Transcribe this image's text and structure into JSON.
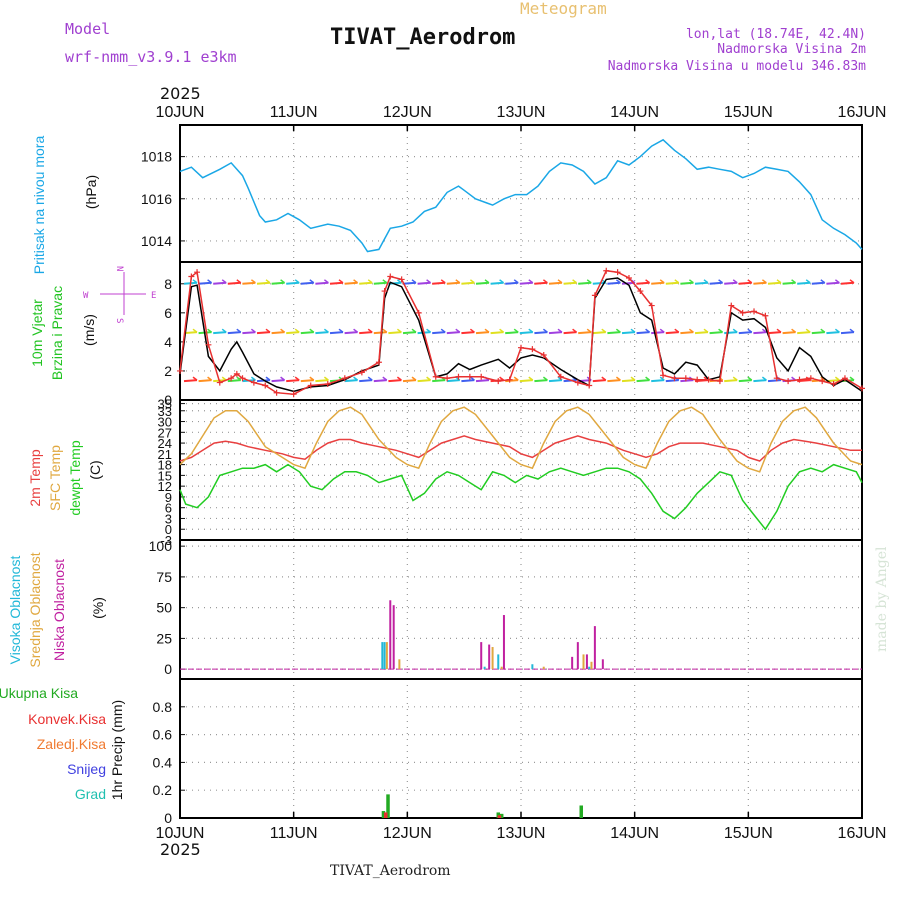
{
  "header": {
    "model_label": "Model",
    "model_name": "wrf-nmm_v3.9.1  e3km",
    "title": "TIVAT_Aerodrom",
    "meteogram_label": "Meteogram",
    "lonlat": "lon,lat (18.74E, 42.4N)",
    "elevation": "Nadmorska Visina 2m",
    "model_elevation": "Nadmorska Visina u modelu 346.83m",
    "year_top": "2025",
    "year_bottom": "2025",
    "footer_station": "TIVAT_Aerodrom",
    "watermark": "made by Angel"
  },
  "colors": {
    "pressure": "#1aa7e6",
    "wind_label": "#22c422",
    "wind_gust": "#e83030",
    "wind_speed": "#000000",
    "temp2m": "#e84040",
    "tempsfc": "#e0a840",
    "dewpt": "#22cc22",
    "cloud_high": "#22b8d8",
    "cloud_mid": "#e0a840",
    "cloud_low": "#c020a0",
    "precip_total": "#22aa22",
    "precip_conv": "#e83030",
    "precip_frz": "#f07a30",
    "precip_snow": "#4040e0",
    "precip_grad": "#20c0b0",
    "title_purple": "#a040d0"
  },
  "chart_data": {
    "type": "meteogram",
    "time_axis": {
      "ticks": [
        "10JUN",
        "11JUN",
        "12JUN",
        "13JUN",
        "14JUN",
        "15JUN",
        "16JUN"
      ],
      "range_days": [
        0,
        6
      ]
    },
    "panels": [
      {
        "id": "pressure",
        "type": "line",
        "ylabel_side": "Pritisak na nivou mora",
        "unit": "(hPa)",
        "ylim": [
          1013.0,
          1019.5
        ],
        "ticks": [
          1014,
          1016,
          1018
        ],
        "series": [
          {
            "name": "Pritisak na nivou mora",
            "color_key": "pressure",
            "x": [
              0,
              0.1,
              0.2,
              0.35,
              0.45,
              0.55,
              0.6,
              0.7,
              0.75,
              0.85,
              0.95,
              1.05,
              1.15,
              1.3,
              1.4,
              1.5,
              1.6,
              1.65,
              1.75,
              1.85,
              1.95,
              2.05,
              2.15,
              2.25,
              2.35,
              2.45,
              2.5,
              2.6,
              2.7,
              2.75,
              2.85,
              2.95,
              3.05,
              3.15,
              3.25,
              3.35,
              3.45,
              3.55,
              3.65,
              3.75,
              3.85,
              3.95,
              4.05,
              4.15,
              4.25,
              4.35,
              4.45,
              4.55,
              4.65,
              4.75,
              4.85,
              4.95,
              5.05,
              5.15,
              5.25,
              5.35,
              5.45,
              5.55,
              5.65,
              5.75,
              5.85,
              5.95,
              6.0
            ],
            "values": [
              1017.3,
              1017.5,
              1017.0,
              1017.4,
              1017.7,
              1017.1,
              1016.5,
              1015.2,
              1014.9,
              1015.0,
              1015.3,
              1015.0,
              1014.6,
              1014.8,
              1014.7,
              1014.5,
              1013.9,
              1013.5,
              1013.6,
              1014.6,
              1014.7,
              1014.9,
              1015.4,
              1015.6,
              1016.3,
              1016.6,
              1016.4,
              1016.0,
              1015.8,
              1015.7,
              1016.0,
              1016.2,
              1016.2,
              1016.6,
              1017.3,
              1017.7,
              1017.6,
              1017.3,
              1016.7,
              1017.0,
              1017.8,
              1017.6,
              1018.0,
              1018.5,
              1018.8,
              1018.3,
              1017.9,
              1017.4,
              1017.5,
              1017.4,
              1017.3,
              1017.0,
              1017.2,
              1017.5,
              1017.4,
              1017.3,
              1016.8,
              1016.2,
              1015.0,
              1014.6,
              1014.3,
              1013.9,
              1013.6
            ]
          }
        ]
      },
      {
        "id": "wind",
        "type": "line",
        "ylabel_side": [
          "10m Vjetar",
          "Brzina i Pravac"
        ],
        "unit": "(m/s)",
        "compass": {
          "n": "N",
          "w": "W",
          "e": "E",
          "s": "S"
        },
        "ylim": [
          0,
          9.5
        ],
        "ticks": [
          0,
          2,
          4,
          6,
          8
        ],
        "barb_rows": [
          1.3,
          4.6,
          8.0
        ],
        "series": [
          {
            "name": "Brzina",
            "color_key": "wind_speed",
            "x": [
              0,
              0.1,
              0.15,
              0.25,
              0.35,
              0.45,
              0.5,
              0.55,
              0.65,
              0.75,
              0.85,
              1.0,
              1.15,
              1.3,
              1.45,
              1.6,
              1.75,
              1.8,
              1.85,
              1.95,
              2.1,
              2.25,
              2.35,
              2.45,
              2.55,
              2.65,
              2.8,
              2.9,
              3.0,
              3.1,
              3.2,
              3.35,
              3.5,
              3.6,
              3.65,
              3.75,
              3.85,
              3.95,
              4.05,
              4.15,
              4.25,
              4.35,
              4.45,
              4.55,
              4.65,
              4.75,
              4.85,
              4.95,
              5.05,
              5.15,
              5.25,
              5.35,
              5.45,
              5.55,
              5.65,
              5.75,
              5.85,
              6.0
            ],
            "values": [
              1.8,
              7.8,
              7.9,
              3.0,
              2.0,
              3.5,
              4.0,
              3.3,
              1.8,
              1.3,
              0.9,
              0.6,
              0.9,
              1.0,
              1.4,
              2.0,
              2.4,
              7.0,
              8.1,
              7.8,
              5.5,
              1.6,
              1.8,
              2.5,
              2.1,
              2.4,
              2.8,
              2.2,
              2.9,
              3.1,
              2.9,
              2.1,
              1.4,
              1.0,
              7.0,
              8.3,
              8.4,
              7.9,
              6.0,
              5.5,
              2.2,
              1.8,
              2.6,
              2.4,
              1.4,
              1.6,
              6.0,
              5.5,
              5.6,
              5.0,
              2.9,
              2.0,
              3.6,
              3.0,
              1.6,
              1.0,
              1.4,
              0.6
            ]
          },
          {
            "name": "Udari",
            "color_key": "wind_gust",
            "x": [
              0,
              0.1,
              0.15,
              0.25,
              0.35,
              0.45,
              0.5,
              0.55,
              0.65,
              0.75,
              0.85,
              1.0,
              1.15,
              1.3,
              1.45,
              1.6,
              1.75,
              1.8,
              1.85,
              1.95,
              2.1,
              2.25,
              2.35,
              2.45,
              2.55,
              2.65,
              2.8,
              2.9,
              3.0,
              3.1,
              3.2,
              3.35,
              3.5,
              3.6,
              3.65,
              3.75,
              3.85,
              3.95,
              4.05,
              4.15,
              4.25,
              4.35,
              4.45,
              4.55,
              4.65,
              4.75,
              4.85,
              4.95,
              5.05,
              5.15,
              5.25,
              5.35,
              5.45,
              5.55,
              5.65,
              5.75,
              5.85,
              6.0
            ],
            "values": [
              2.0,
              8.5,
              8.8,
              3.8,
              1.2,
              1.5,
              1.8,
              1.5,
              1.2,
              1.0,
              0.5,
              0.4,
              1.0,
              1.1,
              1.5,
              1.9,
              2.6,
              7.5,
              8.5,
              8.3,
              6.0,
              1.6,
              1.5,
              1.6,
              1.6,
              1.6,
              1.3,
              1.4,
              3.6,
              3.5,
              3.1,
              1.6,
              1.2,
              1.0,
              7.2,
              8.9,
              8.8,
              8.4,
              7.5,
              6.5,
              1.7,
              1.5,
              1.5,
              1.4,
              1.4,
              1.3,
              6.5,
              6.0,
              6.1,
              5.8,
              1.5,
              1.3,
              1.4,
              1.5,
              1.3,
              1.1,
              1.5,
              0.8
            ]
          }
        ]
      },
      {
        "id": "temperature",
        "type": "line",
        "ylabel_side": [
          "2m Temp",
          "SFC Temp",
          "dewpt Temp"
        ],
        "unit": "(C)",
        "ylim": [
          -3,
          36
        ],
        "ticks": [
          -3,
          0,
          3,
          6,
          9,
          12,
          15,
          18,
          21,
          24,
          27,
          30,
          33,
          35
        ],
        "series": [
          {
            "name": "2m Temp",
            "color_key": "temp2m",
            "x": [
              0,
              0.1,
              0.2,
              0.3,
              0.4,
              0.5,
              0.6,
              0.75,
              0.9,
              1.0,
              1.1,
              1.2,
              1.3,
              1.4,
              1.5,
              1.6,
              1.75,
              1.9,
              2.0,
              2.1,
              2.2,
              2.3,
              2.4,
              2.5,
              2.6,
              2.75,
              2.9,
              3.0,
              3.1,
              3.2,
              3.3,
              3.4,
              3.5,
              3.6,
              3.75,
              3.9,
              4.0,
              4.1,
              4.2,
              4.3,
              4.4,
              4.5,
              4.6,
              4.75,
              4.9,
              5.0,
              5.1,
              5.2,
              5.3,
              5.4,
              5.5,
              5.6,
              5.75,
              5.9,
              6.0
            ],
            "values": [
              19,
              20,
              22,
              24,
              24.5,
              24,
              23,
              22,
              21,
              20,
              19.5,
              22,
              24,
              25,
              25,
              24,
              23,
              22,
              21,
              20,
              22,
              24,
              25,
              26,
              25,
              24,
              23,
              21,
              20,
              22,
              24,
              25,
              26,
              25,
              24,
              22,
              21,
              20,
              21,
              23,
              24,
              24,
              24,
              23,
              22,
              20,
              19,
              22,
              24,
              25,
              24.5,
              24,
              23,
              22,
              22
            ]
          },
          {
            "name": "SFC Temp",
            "color_key": "tempsfc",
            "x": [
              0,
              0.1,
              0.2,
              0.3,
              0.4,
              0.5,
              0.6,
              0.75,
              0.9,
              1.0,
              1.1,
              1.2,
              1.3,
              1.4,
              1.5,
              1.6,
              1.75,
              1.9,
              2.0,
              2.1,
              2.2,
              2.3,
              2.4,
              2.5,
              2.6,
              2.75,
              2.9,
              3.0,
              3.1,
              3.2,
              3.3,
              3.4,
              3.5,
              3.6,
              3.75,
              3.9,
              4.0,
              4.1,
              4.2,
              4.3,
              4.4,
              4.5,
              4.6,
              4.75,
              4.9,
              5.0,
              5.1,
              5.2,
              5.3,
              5.4,
              5.5,
              5.6,
              5.75,
              5.9,
              6.0
            ],
            "values": [
              18,
              21,
              26,
              31,
              33,
              33,
              30,
              23,
              20,
              18,
              17,
              24,
              30,
              33,
              34,
              32,
              25,
              20,
              18,
              17,
              24,
              30,
              33,
              34,
              32,
              26,
              20,
              18,
              17,
              24,
              30,
              33,
              34,
              32,
              26,
              20,
              18,
              17,
              24,
              30,
              33,
              34,
              32,
              25,
              19,
              17,
              16,
              24,
              30,
              33,
              34,
              31,
              24,
              19,
              18
            ]
          },
          {
            "name": "dewpt Temp",
            "color_key": "dewpt",
            "x": [
              0,
              0.05,
              0.15,
              0.25,
              0.35,
              0.45,
              0.55,
              0.65,
              0.75,
              0.85,
              0.95,
              1.05,
              1.15,
              1.25,
              1.35,
              1.45,
              1.55,
              1.65,
              1.75,
              1.85,
              1.95,
              2.05,
              2.15,
              2.25,
              2.35,
              2.45,
              2.55,
              2.65,
              2.75,
              2.85,
              2.95,
              3.05,
              3.15,
              3.25,
              3.35,
              3.45,
              3.55,
              3.65,
              3.75,
              3.85,
              3.95,
              4.05,
              4.15,
              4.25,
              4.35,
              4.45,
              4.55,
              4.65,
              4.75,
              4.85,
              4.95,
              5.05,
              5.15,
              5.25,
              5.35,
              5.45,
              5.55,
              5.65,
              5.75,
              5.85,
              5.95,
              6.0
            ],
            "values": [
              11,
              7,
              6,
              9,
              15,
              16,
              17,
              17,
              18,
              16,
              18,
              16,
              12,
              11,
              14,
              16,
              16,
              15,
              13,
              14,
              15,
              8,
              10,
              14,
              16,
              15,
              13,
              11,
              16,
              15,
              13,
              15,
              14,
              16,
              17,
              16,
              15,
              16,
              17,
              17,
              16,
              14,
              10,
              5,
              3,
              6,
              10,
              13,
              16,
              15,
              8,
              4,
              0,
              5,
              12,
              16,
              17,
              16,
              18,
              17,
              16,
              13
            ]
          }
        ]
      },
      {
        "id": "cloud",
        "type": "bar",
        "ylabel_side": [
          "Visoka Oblacnost",
          "Srednja Oblacnost",
          "Niska Oblacnost"
        ],
        "unit": "(%)",
        "ylim": [
          -8,
          105
        ],
        "ticks": [
          0,
          25,
          50,
          75,
          100
        ],
        "series": [
          {
            "name": "Visoka Oblacnost",
            "color_key": "cloud_high",
            "x": [
              1.78,
              1.8,
              2.68,
              2.8,
              3.1,
              3.6
            ],
            "values": [
              22,
              22,
              2,
              12,
              4,
              2
            ]
          },
          {
            "name": "Srednja Oblacnost",
            "color_key": "cloud_mid",
            "x": [
              1.82,
              1.93,
              2.75,
              2.83,
              3.2,
              3.55,
              3.62
            ],
            "values": [
              22,
              8,
              18,
              2,
              2,
              12,
              6
            ]
          },
          {
            "name": "Niska Oblacnost",
            "color_key": "cloud_low",
            "x": [
              1.85,
              1.88,
              2.65,
              2.72,
              2.85,
              3.45,
              3.5,
              3.58,
              3.65,
              3.72
            ],
            "values": [
              56,
              52,
              22,
              20,
              44,
              10,
              22,
              12,
              35,
              8
            ]
          }
        ]
      },
      {
        "id": "precip",
        "type": "bar",
        "ylabel_side": [
          "Ukupna Kisa",
          "Konvek.Kisa",
          "Zaledj.Kisa",
          "Snijeg",
          "Grad"
        ],
        "unit": "1hr Precip (mm)",
        "ylim": [
          0,
          1.0
        ],
        "ticks": [
          0,
          0.2,
          0.4,
          0.6,
          0.8
        ],
        "series": [
          {
            "name": "Ukupna Kisa",
            "color_key": "precip_total",
            "x": [
              1.79,
              1.83,
              2.8,
              2.83,
              3.53
            ],
            "values": [
              0.05,
              0.17,
              0.04,
              0.03,
              0.09
            ]
          },
          {
            "name": "Konvek.Kisa",
            "color_key": "precip_conv",
            "x": [
              1.81,
              2.81
            ],
            "values": [
              0.04,
              0.02
            ]
          }
        ]
      }
    ]
  }
}
